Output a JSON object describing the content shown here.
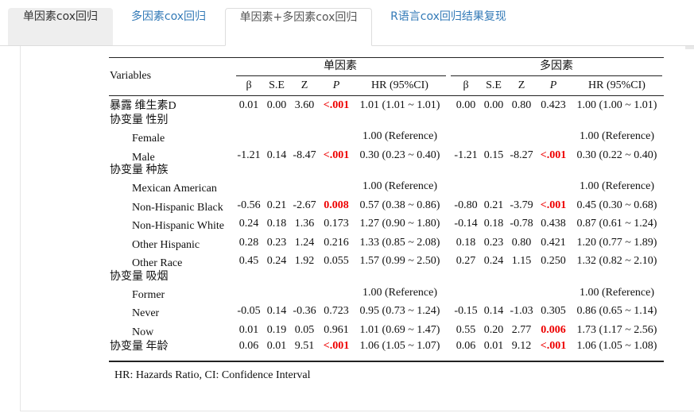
{
  "tabs": {
    "items": [
      "单因素cox回归",
      "多因素cox回归",
      "单因素+多因素cox回归",
      "R语言cox回归结果复现"
    ],
    "active": 2
  },
  "table": {
    "variables_header": "Variables",
    "groups": [
      "单因素",
      "多因素"
    ],
    "columns": [
      "β",
      "S.E",
      "Z",
      "P",
      "HR (95%CI)"
    ],
    "variables": [
      {
        "label": "暴露 维生素D",
        "uni": [
          "0.01",
          "0.00",
          "3.60",
          "<.001",
          "1.01 (1.01 ~ 1.01)"
        ],
        "multi": [
          "0.00",
          "0.00",
          "0.80",
          "0.423",
          "1.00 (1.00 ~ 1.01)"
        ]
      },
      {
        "label": "协变量 性别",
        "items": [
          {
            "label": "Female",
            "uni": "1.00 (Reference)",
            "multi": "1.00 (Reference)"
          },
          {
            "label": "Male",
            "uni": [
              "-1.21",
              "0.14",
              "-8.47",
              "<.001",
              "0.30 (0.23 ~ 0.40)"
            ],
            "multi": [
              "-1.21",
              "0.15",
              "-8.27",
              "<.001",
              "0.30 (0.22 ~ 0.40)"
            ]
          }
        ]
      },
      {
        "label": "协变量 种族",
        "items": [
          {
            "label": "Mexican American",
            "uni": "1.00 (Reference)",
            "multi": "1.00 (Reference)"
          },
          {
            "label": "Non-Hispanic Black",
            "uni": [
              "-0.56",
              "0.21",
              "-2.67",
              "0.008",
              "0.57 (0.38 ~ 0.86)"
            ],
            "multi": [
              "-0.80",
              "0.21",
              "-3.79",
              "<.001",
              "0.45 (0.30 ~ 0.68)"
            ]
          },
          {
            "label": "Non-Hispanic White",
            "uni": [
              "0.24",
              "0.18",
              "1.36",
              "0.173",
              "1.27 (0.90 ~ 1.80)"
            ],
            "multi": [
              "-0.14",
              "0.18",
              "-0.78",
              "0.438",
              "0.87 (0.61 ~ 1.24)"
            ]
          },
          {
            "label": "Other Hispanic",
            "uni": [
              "0.28",
              "0.23",
              "1.24",
              "0.216",
              "1.33 (0.85 ~ 2.08)"
            ],
            "multi": [
              "0.18",
              "0.23",
              "0.80",
              "0.421",
              "1.20 (0.77 ~ 1.89)"
            ]
          },
          {
            "label": "Other Race",
            "uni": [
              "0.45",
              "0.24",
              "1.92",
              "0.055",
              "1.57 (0.99 ~ 2.50)"
            ],
            "multi": [
              "0.27",
              "0.24",
              "1.15",
              "0.250",
              "1.32 (0.82 ~ 2.10)"
            ]
          }
        ]
      },
      {
        "label": "协变量 吸烟",
        "items": [
          {
            "label": "Former",
            "uni": "1.00 (Reference)",
            "multi": "1.00 (Reference)"
          },
          {
            "label": "Never",
            "uni": [
              "-0.05",
              "0.14",
              "-0.36",
              "0.723",
              "0.95 (0.73 ~ 1.24)"
            ],
            "multi": [
              "-0.15",
              "0.14",
              "-1.03",
              "0.305",
              "0.86 (0.65 ~ 1.14)"
            ]
          },
          {
            "label": "Now",
            "uni": [
              "0.01",
              "0.19",
              "0.05",
              "0.961",
              "1.01 (0.69 ~ 1.47)"
            ],
            "multi": [
              "0.55",
              "0.20",
              "2.77",
              "0.006",
              "1.73 (1.17 ~ 2.56)"
            ]
          }
        ]
      },
      {
        "label": "协变量 年龄",
        "uni": [
          "0.06",
          "0.01",
          "9.51",
          "<.001",
          "1.06 (1.05 ~ 1.07)"
        ],
        "multi": [
          "0.06",
          "0.01",
          "9.12",
          "<.001",
          "1.06 (1.05 ~ 1.08)"
        ]
      }
    ],
    "footnote": "HR: Hazards Ratio, CI: Confidence Interval"
  }
}
